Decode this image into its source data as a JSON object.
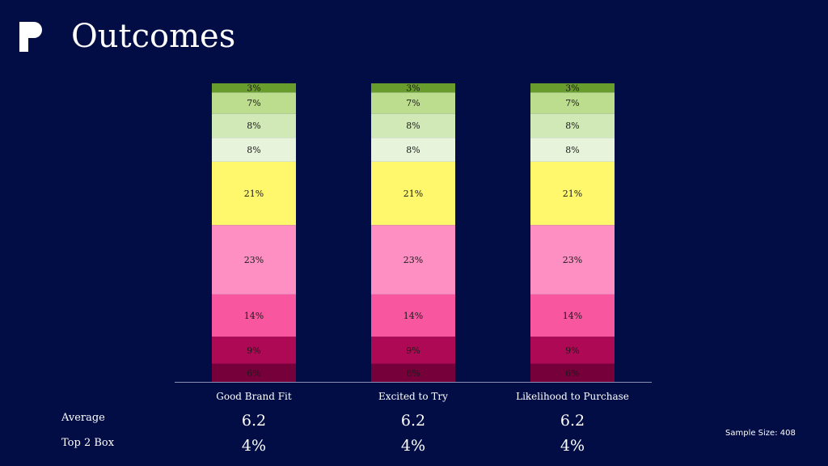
{
  "header": {
    "title": "Outcomes"
  },
  "chart_data": {
    "type": "bar",
    "stacked": true,
    "categories": [
      "Good Brand Fit",
      "Excited to Try",
      "Likelihood to Purchase"
    ],
    "series": [
      {
        "values": [
          6,
          6,
          6
        ],
        "color": "#76003a"
      },
      {
        "values": [
          9,
          9,
          9
        ],
        "color": "#ad0954"
      },
      {
        "values": [
          14,
          14,
          14
        ],
        "color": "#f956a0"
      },
      {
        "values": [
          23,
          23,
          23
        ],
        "color": "#fe8fc2"
      },
      {
        "values": [
          21,
          21,
          21
        ],
        "color": "#fff86c"
      },
      {
        "values": [
          8,
          8,
          8
        ],
        "color": "#e7f3da"
      },
      {
        "values": [
          8,
          8,
          8
        ],
        "color": "#d0e9b6"
      },
      {
        "values": [
          7,
          7,
          7
        ],
        "color": "#bcdd8d"
      },
      {
        "values": [
          3,
          3,
          3
        ],
        "color": "#689c2c"
      }
    ],
    "value_suffix": "%",
    "ylim": [
      0,
      99
    ],
    "grid": false,
    "legend": "none"
  },
  "summary": {
    "rows": [
      {
        "label": "Average",
        "values": [
          "6.2",
          "6.2",
          "6.2"
        ]
      },
      {
        "label": "Top 2 Box",
        "values": [
          "4%",
          "4%",
          "4%"
        ]
      }
    ]
  },
  "footer": {
    "sample_size": "Sample Size: 408"
  },
  "colors": {
    "background": "#020d45",
    "text": "#ffffff",
    "axis": "#8a90b5"
  }
}
